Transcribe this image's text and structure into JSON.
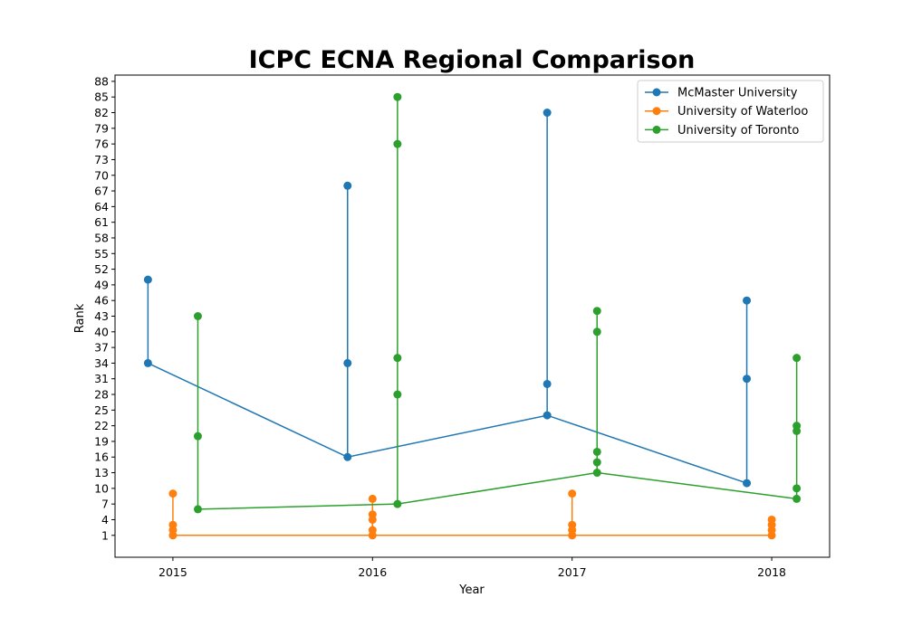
{
  "chart_data": {
    "type": "line",
    "title": "ICPC ECNA Regional Comparison",
    "xlabel": "Year",
    "ylabel": "Rank",
    "x_ticks": [
      2015,
      2016,
      2017,
      2018
    ],
    "y_ticks": [
      1,
      4,
      7,
      10,
      13,
      16,
      19,
      22,
      25,
      28,
      31,
      34,
      37,
      40,
      43,
      46,
      49,
      52,
      55,
      58,
      61,
      64,
      67,
      70,
      73,
      76,
      79,
      82,
      85,
      88
    ],
    "xlim": [
      2014.71,
      2018.29
    ],
    "ylim": [
      -3.2,
      89.2
    ],
    "legend_position": "top-right",
    "grid": false,
    "series": [
      {
        "name": "McMaster University",
        "color": "#1f77b4",
        "x_offset": -0.125,
        "line": [
          [
            2015,
            34
          ],
          [
            2016,
            16
          ],
          [
            2017,
            24
          ],
          [
            2018,
            11
          ]
        ],
        "ranks": [
          [
            34,
            50
          ],
          [
            16,
            34,
            68
          ],
          [
            24,
            30,
            82
          ],
          [
            11,
            31,
            46
          ]
        ]
      },
      {
        "name": "University of Waterloo",
        "color": "#ff7f0e",
        "x_offset": 0,
        "line": [
          [
            2015,
            1
          ],
          [
            2016,
            1
          ],
          [
            2017,
            1
          ],
          [
            2018,
            1
          ]
        ],
        "ranks": [
          [
            1,
            2,
            3,
            9
          ],
          [
            1,
            2,
            4,
            5,
            8
          ],
          [
            1,
            2,
            3,
            9
          ],
          [
            1,
            2,
            3,
            4
          ]
        ]
      },
      {
        "name": "University of Toronto",
        "color": "#2ca02c",
        "x_offset": 0.125,
        "line": [
          [
            2015,
            6
          ],
          [
            2016,
            7
          ],
          [
            2017,
            13
          ],
          [
            2018,
            8
          ]
        ],
        "ranks": [
          [
            6,
            20,
            43
          ],
          [
            7,
            28,
            35,
            76,
            85
          ],
          [
            13,
            15,
            17,
            40,
            44
          ],
          [
            8,
            10,
            21,
            22,
            35
          ]
        ]
      }
    ]
  }
}
